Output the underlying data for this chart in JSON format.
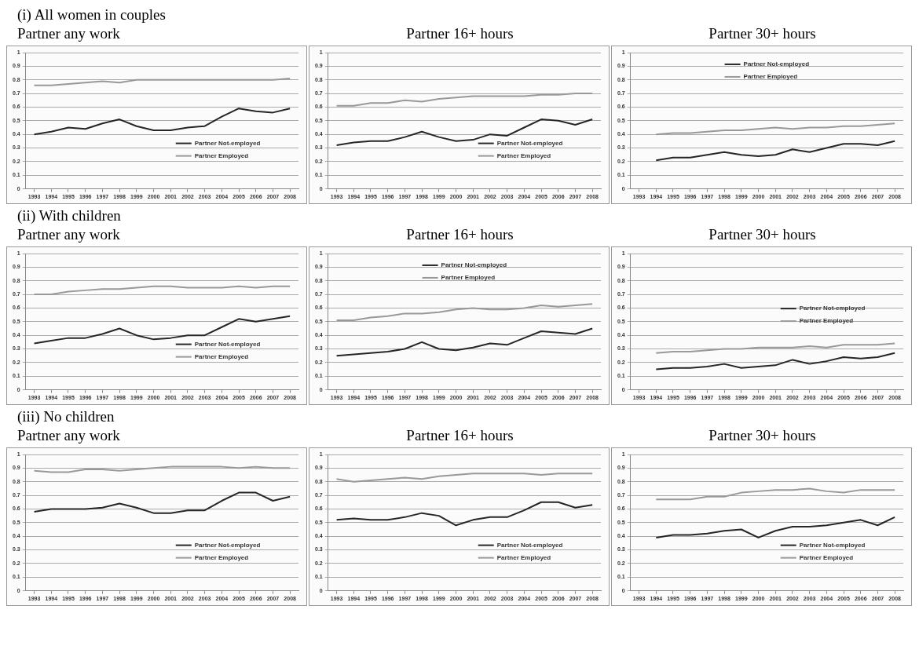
{
  "chart_data": [
    {
      "type": "line",
      "title": "Partner any work",
      "annotations": [
        "(i) All women in couples"
      ],
      "categories": [
        "1993",
        "1994",
        "1995",
        "1996",
        "1997",
        "1998",
        "1999",
        "2000",
        "2001",
        "2002",
        "2003",
        "2004",
        "2005",
        "2006",
        "2007",
        "2008"
      ],
      "ylim": [
        0,
        1
      ],
      "yticks": [
        0,
        0.1,
        0.2,
        0.3,
        0.4,
        0.5,
        0.6,
        0.7,
        0.8,
        0.9,
        1
      ],
      "grid": "y",
      "legend": "bottom right",
      "marker": "none",
      "series": [
        {
          "name": "Partner Not-employed",
          "color": "#262626",
          "values": [
            0.4,
            0.42,
            0.45,
            0.44,
            0.48,
            0.51,
            0.46,
            0.43,
            0.43,
            0.45,
            0.46,
            0.53,
            0.59,
            0.57,
            0.56,
            0.59
          ]
        },
        {
          "name": "Partner Employed",
          "color": "#999999",
          "values": [
            0.76,
            0.76,
            0.77,
            0.78,
            0.79,
            0.78,
            0.8,
            0.8,
            0.8,
            0.8,
            0.8,
            0.8,
            0.8,
            0.8,
            0.8,
            0.81
          ]
        }
      ]
    },
    {
      "type": "line",
      "title": "Partner 16+ hours",
      "categories": [
        "1993",
        "1994",
        "1995",
        "1996",
        "1997",
        "1998",
        "1999",
        "2000",
        "2001",
        "2002",
        "2003",
        "2004",
        "2005",
        "2006",
        "2007",
        "2008"
      ],
      "ylim": [
        0,
        1
      ],
      "yticks": [
        0,
        0.1,
        0.2,
        0.3,
        0.4,
        0.5,
        0.6,
        0.7,
        0.8,
        0.9,
        1
      ],
      "grid": "y",
      "legend": "bottom right",
      "marker": "none",
      "series": [
        {
          "name": "Partner Not-employed",
          "color": "#262626",
          "values": [
            0.32,
            0.34,
            0.35,
            0.35,
            0.38,
            0.42,
            0.38,
            0.35,
            0.36,
            0.4,
            0.39,
            0.45,
            0.51,
            0.5,
            0.47,
            0.51
          ]
        },
        {
          "name": "Partner Employed",
          "color": "#999999",
          "values": [
            0.61,
            0.61,
            0.63,
            0.63,
            0.65,
            0.64,
            0.66,
            0.67,
            0.68,
            0.68,
            0.68,
            0.68,
            0.69,
            0.69,
            0.7,
            0.7
          ]
        }
      ]
    },
    {
      "type": "line",
      "title": "Partner 30+ hours",
      "categories": [
        "1993",
        "1994",
        "1995",
        "1996",
        "1997",
        "1998",
        "1999",
        "2000",
        "2001",
        "2002",
        "2003",
        "2004",
        "2005",
        "2006",
        "2007",
        "2008"
      ],
      "ylim": [
        0,
        1
      ],
      "yticks": [
        0,
        0.1,
        0.2,
        0.3,
        0.4,
        0.5,
        0.6,
        0.7,
        0.8,
        0.9,
        1
      ],
      "grid": "y",
      "legend": "top",
      "marker": "none",
      "series": [
        {
          "name": "Partner Not-employed",
          "color": "#262626",
          "values": [
            null,
            0.21,
            0.23,
            0.23,
            0.25,
            0.27,
            0.25,
            0.24,
            0.25,
            0.29,
            0.27,
            0.3,
            0.33,
            0.33,
            0.32,
            0.35
          ]
        },
        {
          "name": "Partner Employed",
          "color": "#999999",
          "values": [
            null,
            0.4,
            0.41,
            0.41,
            0.42,
            0.43,
            0.43,
            0.44,
            0.45,
            0.44,
            0.45,
            0.45,
            0.46,
            0.46,
            0.47,
            0.48
          ]
        }
      ]
    },
    {
      "type": "line",
      "title": "Partner any work",
      "annotations": [
        "(ii) With children"
      ],
      "categories": [
        "1993",
        "1994",
        "1995",
        "1996",
        "1997",
        "1998",
        "1999",
        "2000",
        "2001",
        "2002",
        "2003",
        "2004",
        "2005",
        "2006",
        "2007",
        "2008"
      ],
      "ylim": [
        0,
        1
      ],
      "yticks": [
        0,
        0.1,
        0.2,
        0.3,
        0.4,
        0.5,
        0.6,
        0.7,
        0.8,
        0.9,
        1
      ],
      "grid": "y",
      "legend": "bottom right",
      "marker": "none",
      "series": [
        {
          "name": "Partner Not-employed",
          "color": "#262626",
          "values": [
            0.34,
            0.36,
            0.38,
            0.38,
            0.41,
            0.45,
            0.4,
            0.37,
            0.38,
            0.4,
            0.4,
            0.46,
            0.52,
            0.5,
            0.52,
            0.54
          ]
        },
        {
          "name": "Partner Employed",
          "color": "#999999",
          "values": [
            0.7,
            0.7,
            0.72,
            0.73,
            0.74,
            0.74,
            0.75,
            0.76,
            0.76,
            0.75,
            0.75,
            0.75,
            0.76,
            0.75,
            0.76,
            0.76
          ]
        }
      ]
    },
    {
      "type": "line",
      "title": "Partner 16+ hours",
      "categories": [
        "1993",
        "1994",
        "1995",
        "1996",
        "1997",
        "1998",
        "1999",
        "2000",
        "2001",
        "2002",
        "2003",
        "2004",
        "2005",
        "2006",
        "2007",
        "2008"
      ],
      "ylim": [
        0,
        1
      ],
      "yticks": [
        0,
        0.1,
        0.2,
        0.3,
        0.4,
        0.5,
        0.6,
        0.7,
        0.8,
        0.9,
        1
      ],
      "grid": "y",
      "legend": "top",
      "marker": "none",
      "series": [
        {
          "name": "Partner Not-employed",
          "color": "#262626",
          "values": [
            0.25,
            0.26,
            0.27,
            0.28,
            0.3,
            0.35,
            0.3,
            0.29,
            0.31,
            0.34,
            0.33,
            0.38,
            0.43,
            0.42,
            0.41,
            0.45
          ]
        },
        {
          "name": "Partner Employed",
          "color": "#999999",
          "values": [
            0.51,
            0.51,
            0.53,
            0.54,
            0.56,
            0.56,
            0.57,
            0.59,
            0.6,
            0.59,
            0.59,
            0.6,
            0.62,
            0.61,
            0.62,
            0.63
          ]
        }
      ]
    },
    {
      "type": "line",
      "title": "Partner 30+ hours",
      "categories": [
        "1993",
        "1994",
        "1995",
        "1996",
        "1997",
        "1998",
        "1999",
        "2000",
        "2001",
        "2002",
        "2003",
        "2004",
        "2005",
        "2006",
        "2007",
        "2008"
      ],
      "ylim": [
        0,
        1
      ],
      "yticks": [
        0,
        0.1,
        0.2,
        0.3,
        0.4,
        0.5,
        0.6,
        0.7,
        0.8,
        0.9,
        1
      ],
      "grid": "y",
      "legend": "right",
      "marker": "none",
      "series": [
        {
          "name": "Partner Not-employed",
          "color": "#262626",
          "values": [
            null,
            0.15,
            0.16,
            0.16,
            0.17,
            0.19,
            0.16,
            0.17,
            0.18,
            0.22,
            0.19,
            0.21,
            0.24,
            0.23,
            0.24,
            0.27
          ]
        },
        {
          "name": "Partner Employed",
          "color": "#999999",
          "values": [
            null,
            0.27,
            0.28,
            0.28,
            0.29,
            0.3,
            0.3,
            0.31,
            0.31,
            0.31,
            0.32,
            0.31,
            0.33,
            0.33,
            0.33,
            0.34
          ]
        }
      ]
    },
    {
      "type": "line",
      "title": "Partner any work",
      "annotations": [
        "(iii) No children"
      ],
      "categories": [
        "1993",
        "1994",
        "1995",
        "1996",
        "1997",
        "1998",
        "1999",
        "2000",
        "2001",
        "2002",
        "2003",
        "2004",
        "2005",
        "2006",
        "2007",
        "2008"
      ],
      "ylim": [
        0,
        1
      ],
      "yticks": [
        0,
        0.1,
        0.2,
        0.3,
        0.4,
        0.5,
        0.6,
        0.7,
        0.8,
        0.9,
        1
      ],
      "grid": "y",
      "legend": "bottom right",
      "marker": "none",
      "series": [
        {
          "name": "Partner Not-employed",
          "color": "#262626",
          "values": [
            0.58,
            0.6,
            0.6,
            0.6,
            0.61,
            0.64,
            0.61,
            0.57,
            0.57,
            0.59,
            0.59,
            0.66,
            0.72,
            0.72,
            0.66,
            0.69
          ]
        },
        {
          "name": "Partner Employed",
          "color": "#999999",
          "values": [
            0.88,
            0.87,
            0.87,
            0.89,
            0.89,
            0.88,
            0.89,
            0.9,
            0.91,
            0.91,
            0.91,
            0.91,
            0.9,
            0.91,
            0.9,
            0.9
          ]
        }
      ]
    },
    {
      "type": "line",
      "title": "Partner 16+ hours",
      "categories": [
        "1993",
        "1994",
        "1995",
        "1996",
        "1997",
        "1998",
        "1999",
        "2000",
        "2001",
        "2002",
        "2003",
        "2004",
        "2005",
        "2006",
        "2007",
        "2008"
      ],
      "ylim": [
        0,
        1
      ],
      "yticks": [
        0,
        0.1,
        0.2,
        0.3,
        0.4,
        0.5,
        0.6,
        0.7,
        0.8,
        0.9,
        1
      ],
      "grid": "y",
      "legend": "bottom right",
      "marker": "none",
      "series": [
        {
          "name": "Partner Not-employed",
          "color": "#262626",
          "values": [
            0.52,
            0.53,
            0.52,
            0.52,
            0.54,
            0.57,
            0.55,
            0.48,
            0.52,
            0.54,
            0.54,
            0.59,
            0.65,
            0.65,
            0.61,
            0.63
          ]
        },
        {
          "name": "Partner Employed",
          "color": "#999999",
          "values": [
            0.82,
            0.8,
            0.81,
            0.82,
            0.83,
            0.82,
            0.84,
            0.85,
            0.86,
            0.86,
            0.86,
            0.86,
            0.85,
            0.86,
            0.86,
            0.86
          ]
        }
      ]
    },
    {
      "type": "line",
      "title": "Partner 30+ hours",
      "categories": [
        "1993",
        "1994",
        "1995",
        "1996",
        "1997",
        "1998",
        "1999",
        "2000",
        "2001",
        "2002",
        "2003",
        "2004",
        "2005",
        "2006",
        "2007",
        "2008"
      ],
      "ylim": [
        0,
        1
      ],
      "yticks": [
        0,
        0.1,
        0.2,
        0.3,
        0.4,
        0.5,
        0.6,
        0.7,
        0.8,
        0.9,
        1
      ],
      "grid": "y",
      "legend": "bottom right",
      "marker": "none",
      "series": [
        {
          "name": "Partner Not-employed",
          "color": "#262626",
          "values": [
            null,
            0.39,
            0.41,
            0.41,
            0.42,
            0.44,
            0.45,
            0.39,
            0.44,
            0.47,
            0.47,
            0.48,
            0.5,
            0.52,
            0.48,
            0.54
          ]
        },
        {
          "name": "Partner Employed",
          "color": "#999999",
          "values": [
            null,
            0.67,
            0.67,
            0.67,
            0.69,
            0.69,
            0.72,
            0.73,
            0.74,
            0.74,
            0.75,
            0.73,
            0.72,
            0.74,
            0.74,
            0.74
          ]
        }
      ]
    }
  ]
}
